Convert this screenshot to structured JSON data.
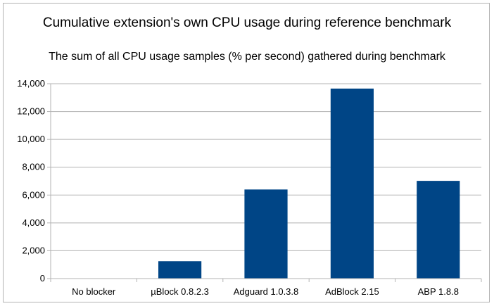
{
  "chart_data": {
    "type": "bar",
    "title": "Cumulative extension's own CPU usage during reference benchmark",
    "subtitle": "The sum of all CPU usage samples (% per second) gathered during benchmark",
    "xlabel": "",
    "ylabel": "",
    "categories": [
      "No blocker",
      "µBlock 0.8.2.3",
      "Adguard 1.0.3.8",
      "AdBlock 2.15",
      "ABP 1.8.8"
    ],
    "values": [
      0,
      1250,
      6400,
      13650,
      7020
    ],
    "ylim": [
      0,
      14000
    ],
    "yticks": [
      0,
      2000,
      4000,
      6000,
      8000,
      10000,
      12000,
      14000
    ],
    "ytick_labels": [
      "0",
      "2,000",
      "4,000",
      "6,000",
      "8,000",
      "10,000",
      "12,000",
      "14,000"
    ],
    "grid": true,
    "legend": "none",
    "bar_color": "#004586",
    "grid_color": "#b3b3b3"
  }
}
